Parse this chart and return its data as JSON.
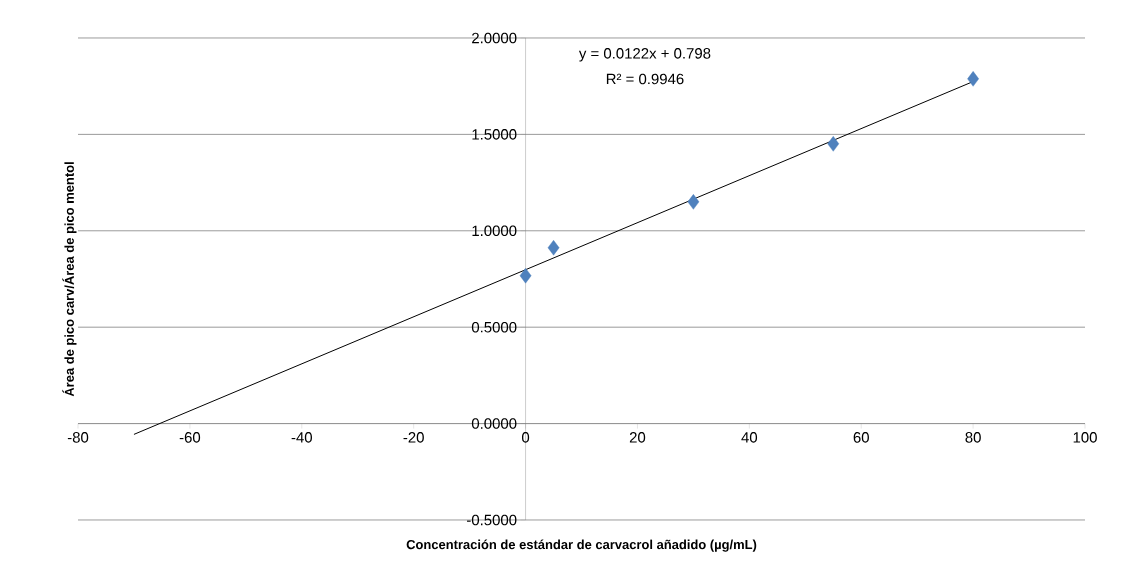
{
  "chart_data": {
    "type": "scatter",
    "xlabel": "Concentración de estándar de carvacrol añadido (µg/mL)",
    "ylabel": "Área de pico carv/Área de pico mentol",
    "annotations": [
      "y = 0.0122x + 0.798",
      "R² = 0.9946"
    ],
    "xlim": [
      -80,
      100
    ],
    "xticks": [
      -80,
      -60,
      -40,
      -20,
      0,
      20,
      40,
      60,
      80,
      100
    ],
    "ylim": [
      -0.5,
      2
    ],
    "yticks": [
      {
        "value": -0.5,
        "label": "-0.5000"
      },
      {
        "value": 0,
        "label": "0.0000"
      },
      {
        "value": 0.5,
        "label": "0.5000"
      },
      {
        "value": 1,
        "label": "1.0000"
      },
      {
        "value": 1.5,
        "label": "1.5000"
      },
      {
        "value": 2,
        "label": "2.0000"
      }
    ],
    "grid": "y",
    "series": [
      {
        "color": "#4f81bd",
        "marker": "diamond",
        "x": [
          0,
          5,
          30,
          55,
          80
        ],
        "values": [
          0.767,
          0.912,
          1.15,
          1.451,
          1.788
        ]
      },
      {
        "type": "line",
        "color": "#000000",
        "marker": "none",
        "line_style": "solid",
        "x": [
          -70,
          80
        ],
        "values": [
          -0.056,
          1.774
        ]
      }
    ]
  }
}
